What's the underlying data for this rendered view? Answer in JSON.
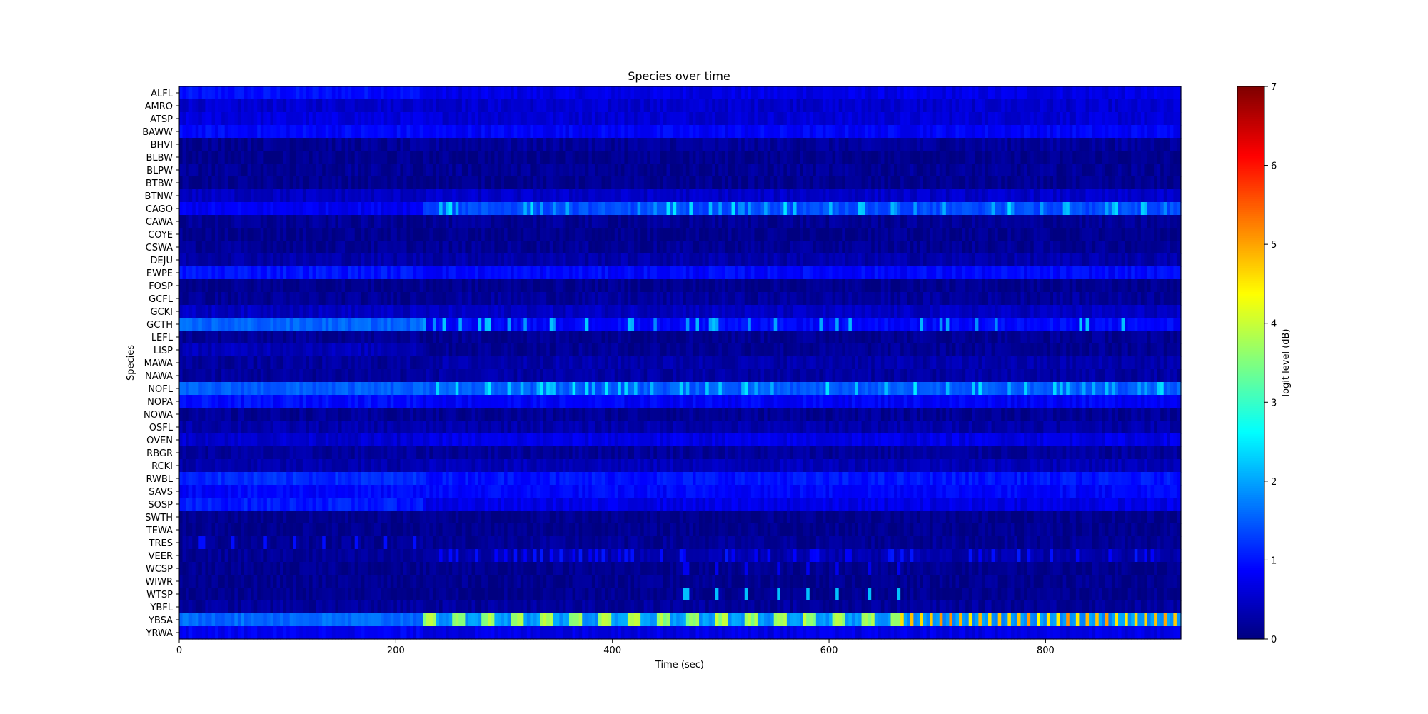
{
  "chart_data": {
    "type": "heatmap",
    "title": "Species over time",
    "xlabel": "Time (sec)",
    "ylabel": "Species",
    "xlim": [
      0,
      925
    ],
    "xticks": [
      0,
      200,
      400,
      600,
      800
    ],
    "colorbar": {
      "label": "logit level (dB)",
      "colormap": "jet",
      "range": [
        0,
        7
      ],
      "ticks": [
        0,
        1,
        2,
        3,
        4,
        5,
        6,
        7
      ]
    },
    "species": [
      "ALFL",
      "AMRO",
      "ATSP",
      "BAWW",
      "BHVI",
      "BLBW",
      "BLPW",
      "BTBW",
      "BTNW",
      "CAGO",
      "CAWA",
      "COYE",
      "CSWA",
      "DEJU",
      "EWPE",
      "FOSP",
      "GCFL",
      "GCKI",
      "GCTH",
      "LEFL",
      "LISP",
      "MAWA",
      "NAWA",
      "NOFL",
      "NOPA",
      "NOWA",
      "OSFL",
      "OVEN",
      "RBGR",
      "RCKI",
      "RWBL",
      "SAVS",
      "SOSP",
      "SWTH",
      "TEWA",
      "TRES",
      "VEER",
      "WCSP",
      "WIWR",
      "WTSP",
      "YBFL",
      "YBSA",
      "YRWA"
    ],
    "time_segment_sec": 3,
    "approx_rows": {
      "note": "Approximate logit levels per species: [value in 0-224 s, value in 224-925 s, peak value]",
      "ALFL": [
        0.95,
        0.7,
        1.1
      ],
      "AMRO": [
        0.55,
        0.55,
        0.9
      ],
      "ATSP": [
        0.65,
        0.6,
        1.2
      ],
      "BAWW": [
        0.9,
        0.85,
        1.1
      ],
      "BHVI": [
        0.15,
        0.2,
        0.7
      ],
      "BLBW": [
        0.1,
        0.1,
        0.3
      ],
      "BLPW": [
        0.15,
        0.15,
        0.6
      ],
      "BTBW": [
        0.1,
        0.1,
        0.3
      ],
      "BTNW": [
        0.45,
        0.5,
        0.8
      ],
      "CAGO": [
        0.8,
        1.4,
        2.4
      ],
      "CAWA": [
        0.15,
        0.15,
        0.3
      ],
      "COYE": [
        0.1,
        0.1,
        0.2
      ],
      "CSWA": [
        0.15,
        0.15,
        0.3
      ],
      "DEJU": [
        0.3,
        0.3,
        0.6
      ],
      "EWPE": [
        1.0,
        0.9,
        1.4
      ],
      "FOSP": [
        0.1,
        0.1,
        0.3
      ],
      "GCFL": [
        0.15,
        0.2,
        0.4
      ],
      "GCKI": [
        0.45,
        0.45,
        0.7
      ],
      "GCTH": [
        1.55,
        0.9,
        2.2
      ],
      "LEFL": [
        0.15,
        0.15,
        0.3
      ],
      "LISP": [
        0.4,
        0.15,
        0.7
      ],
      "MAWA": [
        0.2,
        0.3,
        0.6
      ],
      "NAWA": [
        0.2,
        0.25,
        0.7
      ],
      "NOFL": [
        1.5,
        1.5,
        2.5
      ],
      "NOPA": [
        0.95,
        0.85,
        1.3
      ],
      "NOWA": [
        0.15,
        0.15,
        0.3
      ],
      "OSFL": [
        0.3,
        0.3,
        0.6
      ],
      "OVEN": [
        0.55,
        0.7,
        1.0
      ],
      "RBGR": [
        0.2,
        0.2,
        0.4
      ],
      "RCKI": [
        0.3,
        0.4,
        0.7
      ],
      "RWBL": [
        1.15,
        1.0,
        1.4
      ],
      "SAVS": [
        0.9,
        0.9,
        1.2
      ],
      "SOSP": [
        1.05,
        0.7,
        1.2
      ],
      "SWTH": [
        0.1,
        0.1,
        0.3
      ],
      "TEWA": [
        0.1,
        0.1,
        0.3
      ],
      "TRES": [
        0.15,
        0.15,
        1.0
      ],
      "VEER": [
        0.15,
        0.3,
        1.0
      ],
      "WCSP": [
        0.1,
        0.1,
        0.8
      ],
      "WIWR": [
        0.1,
        0.1,
        0.3
      ],
      "WTSP": [
        0.1,
        0.1,
        2.2
      ],
      "YBFL": [
        0.2,
        0.2,
        0.4
      ],
      "YBSA": [
        1.6,
        1.9,
        5.0
      ],
      "YRWA": [
        0.8,
        0.7,
        1.1
      ]
    },
    "grid": false
  }
}
